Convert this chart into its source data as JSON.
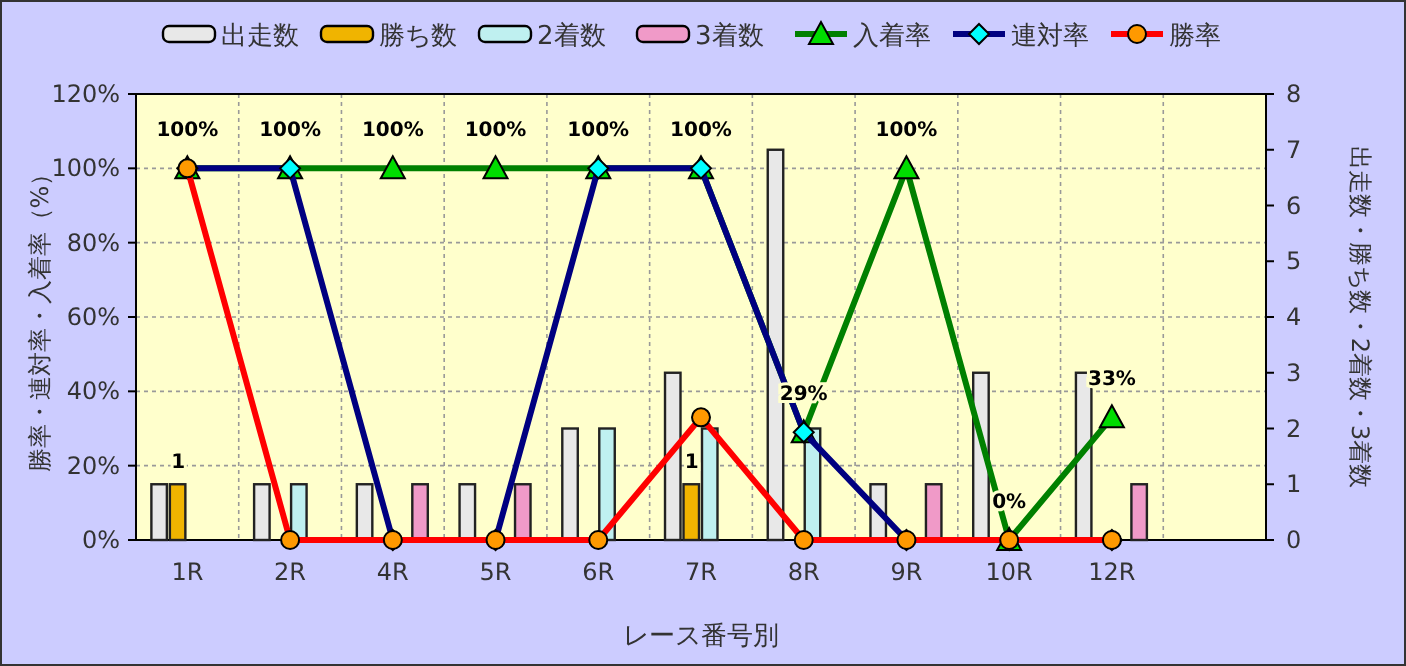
{
  "chart_data": {
    "type": "bar",
    "categories": [
      "1R",
      "2R",
      "4R",
      "5R",
      "6R",
      "7R",
      "8R",
      "9R",
      "10R",
      "12R",
      null
    ],
    "series": [
      {
        "name": "出走数",
        "axis": "y2",
        "color": "#e8e8e8",
        "values": [
          1,
          1,
          1,
          1,
          2,
          3,
          7,
          1,
          3,
          3,
          null
        ]
      },
      {
        "name": "勝ち数",
        "axis": "y2",
        "color": "#f0b400",
        "values": [
          1,
          0,
          0,
          0,
          0,
          1,
          0,
          0,
          0,
          0,
          null
        ],
        "value_labels": [
          "1",
          null,
          null,
          null,
          null,
          "1",
          null,
          null,
          null,
          null,
          null
        ]
      },
      {
        "name": "2着数",
        "axis": "y2",
        "color": "#bff0f0",
        "values": [
          0,
          1,
          0,
          0,
          2,
          2,
          2,
          0,
          0,
          0,
          null
        ]
      },
      {
        "name": "3着数",
        "axis": "y2",
        "color": "#f09ac8",
        "values": [
          0,
          0,
          1,
          1,
          0,
          0,
          0,
          1,
          0,
          1,
          null
        ]
      },
      {
        "name": "入着率",
        "type": "line",
        "color": "#008000",
        "marker": "triangle",
        "colors": [
          "#00dd00",
          "#00dd00",
          "#00dd00",
          "#00dd00",
          "#00dd00",
          "#00dd00",
          "#00dd00",
          "#00dd00",
          "#00dd00",
          "#00dd00",
          null
        ],
        "values": [
          100,
          100,
          100,
          100,
          100,
          100,
          29,
          100,
          0,
          33,
          null
        ],
        "value_labels": [
          "100%",
          "100%",
          "100%",
          "100%",
          "100%",
          "100%",
          "29%",
          "100%",
          "0%",
          "33%",
          null
        ]
      },
      {
        "name": "連対率",
        "type": "line",
        "color": "#000080",
        "marker": "diamond",
        "colors": [
          "#00ffff",
          "#00ffff",
          "#00ffff",
          "#00ffff",
          "#00ffff",
          "#00ffff",
          "#00ffff",
          "#00ffff",
          "#00ffff",
          "#00ffff",
          null
        ],
        "values": [
          100,
          100,
          0,
          0,
          100,
          100,
          29,
          0,
          0,
          0,
          null
        ]
      },
      {
        "name": "勝率",
        "type": "line",
        "color": "#ff0000",
        "marker": "circle",
        "colors": [
          "#ff9900",
          "#ff9900",
          "#ff9900",
          "#ff9900",
          "#ff9900",
          "#ff9900",
          "#ff9900",
          "#ff9900",
          "#ff9900",
          "#ff9900",
          null
        ],
        "values": [
          100,
          0,
          0,
          0,
          0,
          33,
          0,
          0,
          0,
          0,
          null
        ]
      }
    ],
    "xlabel": "レース番号別",
    "ylabel": "勝率・連対率・入着率（%）",
    "y2label": "出走数・勝ち数・2着数・3着数",
    "ylim": [
      0,
      120
    ],
    "yticks": [
      {
        "value": 0,
        "label": "0%"
      },
      {
        "value": 20,
        "label": "20%"
      },
      {
        "value": 40,
        "label": "40%"
      },
      {
        "value": 60,
        "label": "60%"
      },
      {
        "value": 80,
        "label": "80%"
      },
      {
        "value": 100,
        "label": "100%"
      },
      {
        "value": 120,
        "label": "120%"
      }
    ],
    "y2lim": [
      0,
      8
    ],
    "y2ticks": [
      0,
      1,
      2,
      3,
      4,
      5,
      6,
      7,
      8
    ],
    "grid": true,
    "legend": "top"
  }
}
